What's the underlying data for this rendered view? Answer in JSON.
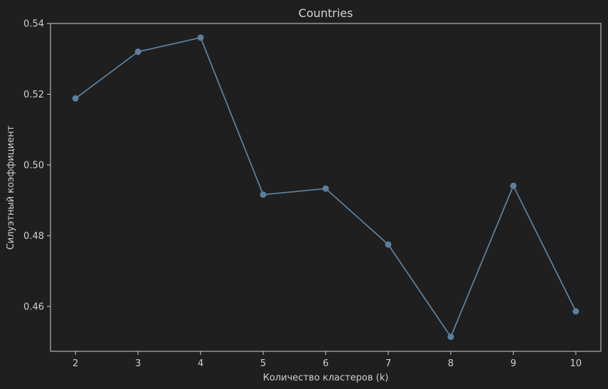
{
  "chart_data": {
    "type": "line",
    "title": "Countries",
    "xlabel": "Количество кластеров (k)",
    "ylabel": "Силуэтный коэффициент",
    "x": [
      2,
      3,
      4,
      5,
      6,
      7,
      8,
      9,
      10
    ],
    "series": [
      {
        "values": [
          0.5188,
          0.532,
          0.536,
          0.4916,
          0.4933,
          0.4775,
          0.4514,
          0.4941,
          0.4586
        ],
        "color": "#5b7f9c",
        "marker": "circle"
      }
    ],
    "xlim": [
      1.6,
      10.4
    ],
    "ylim": [
      0.4473,
      0.54
    ],
    "xticks": [
      "2",
      "3",
      "4",
      "5",
      "6",
      "7",
      "8",
      "9",
      "10"
    ],
    "yticks": [
      "0.46",
      "0.48",
      "0.50",
      "0.52",
      "0.54"
    ],
    "ytick_values": [
      0.46,
      0.48,
      0.5,
      0.52,
      0.54
    ],
    "grid": false,
    "background": "#1f1f1f",
    "axis_color": "#cfcfcf"
  }
}
